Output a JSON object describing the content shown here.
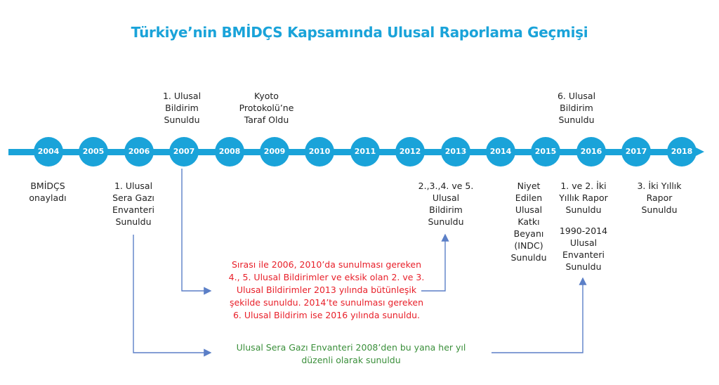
{
  "title": "Türkiye’nin BMİDÇS Kapsamında Ulusal Raporlama Geçmişi",
  "accent_color": "#1aa3d9",
  "years": [
    "2004",
    "2005",
    "2006",
    "2007",
    "2008",
    "2009",
    "2010",
    "2011",
    "2012",
    "2013",
    "2014",
    "2015",
    "2016",
    "2017",
    "2018"
  ],
  "labels_above": {
    "y2007": "1. Ulusal\nBildirim\nSunuldu",
    "y2009": "Kyoto\nProtokolü’ne\nTaraf Oldu",
    "y2016": "6. Ulusal\nBildirim\nSunuldu"
  },
  "labels_below": {
    "y2004": "BMİDÇS\nonayladı",
    "y2006": "1. Ulusal\nSera Gazı\nEnvanteri\nSunuldu",
    "y2013": "2.,3.,4. ve 5.\nUlusal\nBildirim\nSunuldu",
    "y2015": "Niyet\nEdilen\nUlusal\nKatkı\nBeyanı\n(INDC)\nSunuldu",
    "y2016a": "1. ve 2. İki\nYıllık Rapor\nSunuldu",
    "y2016b": "1990-2014\nUlusal\nEnvanteri\nSunuldu",
    "y2018": "3. İki Yıllık\nRapor\nSunuldu"
  },
  "notes": {
    "red": "Sırası ile 2006, 2010’da sunulması gereken\n4., 5. Ulusal Bildirimler ve eksik olan 2. ve 3.\nUlusal Bildirimler 2013 yılında bütünleşik\nşekilde sunuldu. 2014’te sunulması gereken\n6. Ulusal Bildirim ise 2016 yılında sunuldu.",
    "red_color": "#e8202a",
    "green": "Ulusal Sera Gazı Envanteri 2008’den bu yana her yıl\ndüzenli olarak sunuldu",
    "green_color": "#3a8f3a"
  }
}
